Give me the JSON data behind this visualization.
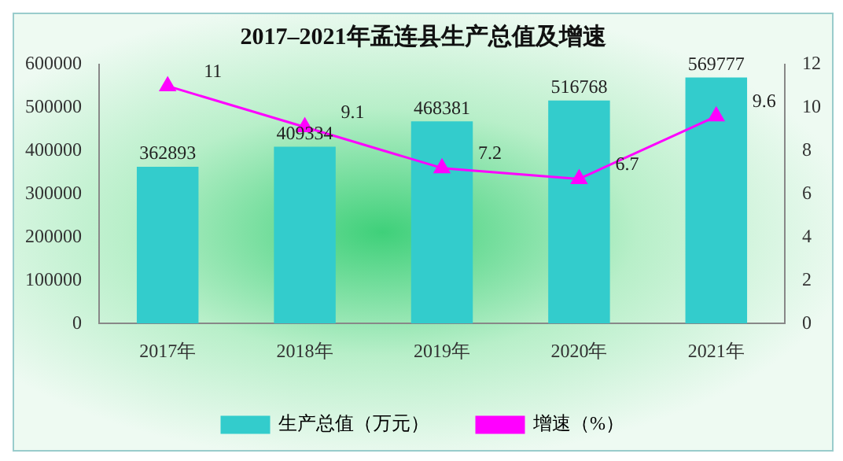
{
  "chart_data": {
    "type": "bar",
    "title": "2017–2021年孟连县生产总值及增速",
    "categories": [
      "2017年",
      "2018年",
      "2019年",
      "2020年",
      "2021年"
    ],
    "series": [
      {
        "name": "生产总值（万元）",
        "color": "#33cccc",
        "values": [
          362893,
          409334,
          468381,
          516768,
          569777
        ]
      },
      {
        "name": "增速（%）",
        "type": "line",
        "axis": "y2",
        "color": "#ff00ff",
        "marker": "triangle",
        "values": [
          11,
          9.1,
          7.2,
          6.7,
          9.6
        ]
      }
    ],
    "ylim": [
      0,
      600000
    ],
    "yticks": [
      0,
      100000,
      200000,
      300000,
      400000,
      500000,
      600000
    ],
    "y2lim": [
      0,
      12
    ],
    "y2ticks": [
      0,
      2,
      4,
      6,
      8,
      10,
      12
    ],
    "data_labels": true,
    "grid": false,
    "legend": "bottom"
  }
}
